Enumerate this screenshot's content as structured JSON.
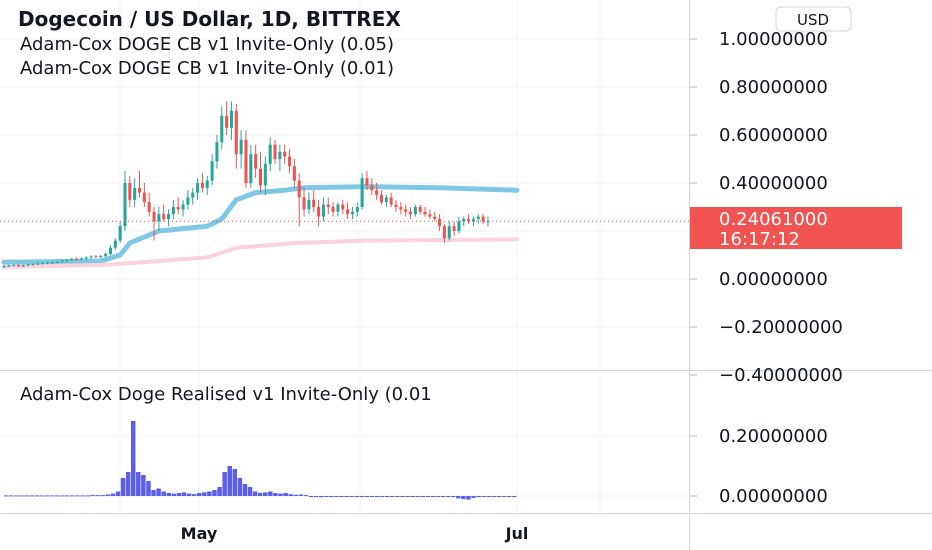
{
  "header": {
    "title": "Dogecoin / US Dollar, 1D, BITTREX",
    "indicator_1": "Adam-Cox DOGE CB v1 Invite-Only (0.05)",
    "indicator_2": "Adam-Cox DOGE CB v1 Invite-Only (0.01)"
  },
  "currency_button": "USD",
  "last_price": {
    "value": "0.24061000",
    "countdown": "16:17:12",
    "color": "#f05350"
  },
  "lower_pane": {
    "title": "Adam-Cox Doge Realised v1 Invite-Only (0.01"
  },
  "colors": {
    "up": "#26a69a",
    "down": "#ef5350",
    "upper_band": "#7ec8e3",
    "lower_band": "#fbd3dc",
    "histogram": "#5b5ee8",
    "grid": "#f0f3fa"
  },
  "chart_data": [
    {
      "type": "candlestick",
      "ylim": [
        -0.4,
        1.05
      ],
      "y_ticks": [
        "1.00000000",
        "0.80000000",
        "0.60000000",
        "0.40000000",
        "0.20000000",
        "0.00000000",
        "−0.20000000",
        "−0.40000000"
      ],
      "x_ticks": [
        "May",
        "Jul"
      ],
      "last_value": 0.24061,
      "x_index_range": [
        0,
        106
      ],
      "candles_ohlc": [
        [
          0.05,
          0.058,
          0.046,
          0.054
        ],
        [
          0.054,
          0.06,
          0.05,
          0.056
        ],
        [
          0.056,
          0.062,
          0.052,
          0.058
        ],
        [
          0.058,
          0.061,
          0.05,
          0.055
        ],
        [
          0.055,
          0.06,
          0.05,
          0.057
        ],
        [
          0.057,
          0.064,
          0.054,
          0.06
        ],
        [
          0.06,
          0.066,
          0.056,
          0.062
        ],
        [
          0.062,
          0.068,
          0.058,
          0.064
        ],
        [
          0.064,
          0.07,
          0.06,
          0.066
        ],
        [
          0.066,
          0.072,
          0.062,
          0.068
        ],
        [
          0.068,
          0.075,
          0.063,
          0.07
        ],
        [
          0.07,
          0.076,
          0.065,
          0.072
        ],
        [
          0.072,
          0.08,
          0.068,
          0.076
        ],
        [
          0.076,
          0.084,
          0.07,
          0.08
        ],
        [
          0.08,
          0.088,
          0.074,
          0.084
        ],
        [
          0.084,
          0.09,
          0.076,
          0.082
        ],
        [
          0.082,
          0.09,
          0.076,
          0.086
        ],
        [
          0.086,
          0.094,
          0.08,
          0.09
        ],
        [
          0.09,
          0.098,
          0.084,
          0.094
        ],
        [
          0.094,
          0.1,
          0.088,
          0.092
        ],
        [
          0.092,
          0.1,
          0.086,
          0.096
        ],
        [
          0.096,
          0.11,
          0.09,
          0.104
        ],
        [
          0.104,
          0.14,
          0.1,
          0.13
        ],
        [
          0.13,
          0.17,
          0.12,
          0.16
        ],
        [
          0.16,
          0.24,
          0.15,
          0.22
        ],
        [
          0.22,
          0.45,
          0.2,
          0.4
        ],
        [
          0.4,
          0.43,
          0.3,
          0.33
        ],
        [
          0.33,
          0.42,
          0.3,
          0.38
        ],
        [
          0.38,
          0.45,
          0.34,
          0.36
        ],
        [
          0.36,
          0.4,
          0.3,
          0.32
        ],
        [
          0.32,
          0.36,
          0.26,
          0.28
        ],
        [
          0.28,
          0.3,
          0.16,
          0.24
        ],
        [
          0.24,
          0.3,
          0.2,
          0.27
        ],
        [
          0.27,
          0.31,
          0.24,
          0.25
        ],
        [
          0.25,
          0.29,
          0.22,
          0.27
        ],
        [
          0.27,
          0.33,
          0.25,
          0.3
        ],
        [
          0.3,
          0.34,
          0.27,
          0.29
        ],
        [
          0.29,
          0.33,
          0.26,
          0.31
        ],
        [
          0.31,
          0.37,
          0.29,
          0.34
        ],
        [
          0.34,
          0.38,
          0.31,
          0.36
        ],
        [
          0.36,
          0.42,
          0.33,
          0.4
        ],
        [
          0.4,
          0.44,
          0.36,
          0.38
        ],
        [
          0.38,
          0.43,
          0.35,
          0.41
        ],
        [
          0.41,
          0.52,
          0.39,
          0.49
        ],
        [
          0.49,
          0.6,
          0.46,
          0.57
        ],
        [
          0.57,
          0.72,
          0.54,
          0.68
        ],
        [
          0.68,
          0.74,
          0.6,
          0.63
        ],
        [
          0.63,
          0.74,
          0.58,
          0.7
        ],
        [
          0.7,
          0.73,
          0.46,
          0.52
        ],
        [
          0.52,
          0.62,
          0.46,
          0.58
        ],
        [
          0.58,
          0.62,
          0.38,
          0.4
        ],
        [
          0.4,
          0.56,
          0.38,
          0.52
        ],
        [
          0.52,
          0.56,
          0.42,
          0.46
        ],
        [
          0.46,
          0.53,
          0.36,
          0.39
        ],
        [
          0.39,
          0.51,
          0.35,
          0.48
        ],
        [
          0.48,
          0.59,
          0.45,
          0.56
        ],
        [
          0.56,
          0.58,
          0.48,
          0.5
        ],
        [
          0.5,
          0.56,
          0.45,
          0.53
        ],
        [
          0.53,
          0.56,
          0.48,
          0.51
        ],
        [
          0.51,
          0.54,
          0.44,
          0.47
        ],
        [
          0.47,
          0.5,
          0.38,
          0.41
        ],
        [
          0.41,
          0.44,
          0.22,
          0.34
        ],
        [
          0.34,
          0.38,
          0.26,
          0.29
        ],
        [
          0.29,
          0.36,
          0.27,
          0.33
        ],
        [
          0.33,
          0.37,
          0.28,
          0.3
        ],
        [
          0.3,
          0.33,
          0.22,
          0.26
        ],
        [
          0.26,
          0.34,
          0.24,
          0.31
        ],
        [
          0.31,
          0.34,
          0.27,
          0.3
        ],
        [
          0.3,
          0.32,
          0.26,
          0.28
        ],
        [
          0.28,
          0.32,
          0.26,
          0.31
        ],
        [
          0.31,
          0.33,
          0.27,
          0.29
        ],
        [
          0.29,
          0.32,
          0.25,
          0.27
        ],
        [
          0.27,
          0.3,
          0.25,
          0.28
        ],
        [
          0.28,
          0.32,
          0.26,
          0.3
        ],
        [
          0.3,
          0.44,
          0.29,
          0.42
        ],
        [
          0.42,
          0.45,
          0.37,
          0.39
        ],
        [
          0.39,
          0.42,
          0.35,
          0.37
        ],
        [
          0.37,
          0.4,
          0.33,
          0.35
        ],
        [
          0.35,
          0.37,
          0.31,
          0.32
        ],
        [
          0.32,
          0.35,
          0.3,
          0.34
        ],
        [
          0.34,
          0.36,
          0.3,
          0.31
        ],
        [
          0.31,
          0.33,
          0.28,
          0.3
        ],
        [
          0.3,
          0.32,
          0.27,
          0.29
        ],
        [
          0.29,
          0.31,
          0.26,
          0.28
        ],
        [
          0.28,
          0.3,
          0.25,
          0.27
        ],
        [
          0.27,
          0.31,
          0.26,
          0.3
        ],
        [
          0.3,
          0.31,
          0.27,
          0.28
        ],
        [
          0.28,
          0.3,
          0.26,
          0.27
        ],
        [
          0.27,
          0.29,
          0.25,
          0.26
        ],
        [
          0.26,
          0.28,
          0.24,
          0.25
        ],
        [
          0.25,
          0.27,
          0.2,
          0.22
        ],
        [
          0.22,
          0.23,
          0.15,
          0.17
        ],
        [
          0.17,
          0.24,
          0.16,
          0.22
        ],
        [
          0.22,
          0.24,
          0.18,
          0.2
        ],
        [
          0.2,
          0.26,
          0.19,
          0.24
        ],
        [
          0.24,
          0.26,
          0.22,
          0.25
        ],
        [
          0.25,
          0.27,
          0.23,
          0.24
        ],
        [
          0.24,
          0.26,
          0.22,
          0.25
        ],
        [
          0.25,
          0.27,
          0.23,
          0.26
        ],
        [
          0.26,
          0.27,
          0.23,
          0.24
        ],
        [
          0.24,
          0.26,
          0.22,
          0.241
        ]
      ],
      "series": [
        {
          "name": "Adam-Cox DOGE CB v1 Invite-Only (0.05)",
          "y_points": [
            [
              0,
              0.07
            ],
            [
              20,
              0.075
            ],
            [
              24,
              0.1
            ],
            [
              26,
              0.15
            ],
            [
              32,
              0.2
            ],
            [
              42,
              0.22
            ],
            [
              45,
              0.25
            ],
            [
              48,
              0.33
            ],
            [
              52,
              0.36
            ],
            [
              58,
              0.37
            ],
            [
              62,
              0.38
            ],
            [
              75,
              0.385
            ],
            [
              90,
              0.38
            ],
            [
              106,
              0.37
            ]
          ]
        },
        {
          "name": "Adam-Cox DOGE CB v1 Invite-Only (0.01)",
          "y_points": [
            [
              0,
              0.05
            ],
            [
              22,
              0.06
            ],
            [
              42,
              0.09
            ],
            [
              48,
              0.13
            ],
            [
              60,
              0.15
            ],
            [
              75,
              0.16
            ],
            [
              106,
              0.165
            ]
          ]
        }
      ]
    },
    {
      "type": "bar",
      "title": "Adam-Cox Doge Realised v1 Invite-Only (0.01",
      "ylim": [
        -0.02,
        0.26
      ],
      "y_ticks": [
        "0.20000000",
        "0.00000000"
      ],
      "values": [
        0.002,
        0.002,
        0.002,
        0.002,
        0.002,
        0.002,
        0.002,
        0.002,
        0.002,
        0.002,
        0.002,
        0.002,
        0.002,
        0.002,
        0.002,
        0.002,
        0.002,
        0.003,
        0.003,
        0.003,
        0.005,
        0.008,
        0.015,
        0.06,
        0.08,
        0.25,
        0.08,
        0.07,
        0.05,
        0.02,
        0.025,
        0.015,
        0.01,
        0.008,
        0.01,
        0.012,
        0.008,
        0.006,
        0.01,
        0.012,
        0.015,
        0.02,
        0.03,
        0.08,
        0.1,
        0.09,
        0.06,
        0.04,
        0.03,
        0.015,
        0.01,
        0.012,
        0.015,
        0.01,
        0.008,
        0.01,
        0.006,
        0.004,
        0.005,
        0.003,
        -0.003,
        -0.002,
        -0.004,
        -0.002,
        -0.001,
        -0.002,
        -0.001,
        -0.002,
        -0.001,
        -0.001,
        -0.001,
        -0.001,
        -0.002,
        -0.001,
        -0.001,
        -0.001,
        -0.001,
        -0.001,
        -0.001,
        -0.001,
        -0.002,
        -0.001,
        -0.001,
        -0.001,
        -0.002,
        -0.001,
        -0.001,
        -0.002,
        -0.003,
        -0.008,
        -0.01,
        -0.012,
        -0.006,
        -0.004,
        -0.003,
        -0.002,
        -0.002,
        -0.002,
        -0.002,
        -0.002,
        -0.002
      ]
    }
  ]
}
